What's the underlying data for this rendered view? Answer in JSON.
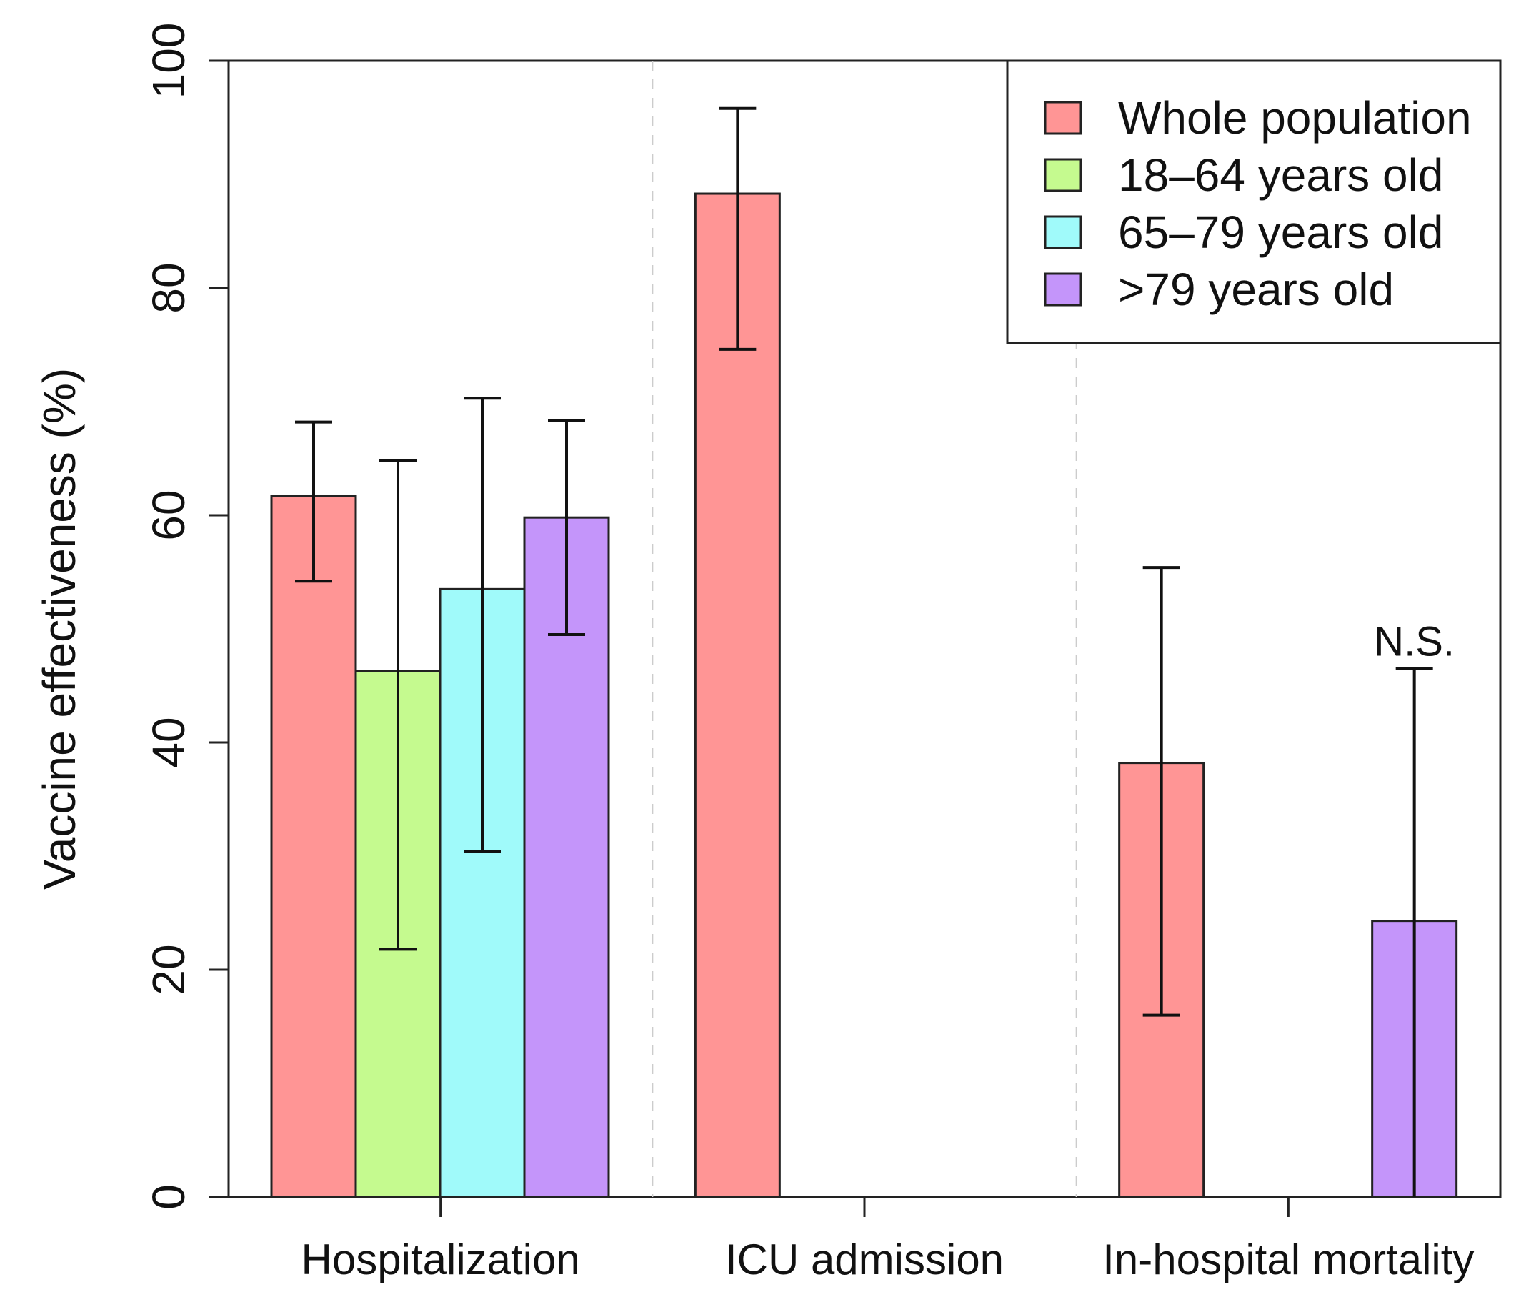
{
  "chart_data": {
    "type": "bar",
    "title": "",
    "xlabel": "",
    "ylabel": "Vaccine effectiveness (%)",
    "ylim": [
      0,
      100
    ],
    "yticks": [
      0,
      20,
      40,
      60,
      80,
      100
    ],
    "categories": [
      "Hospitalization",
      "ICU admission",
      "In-hospital mortality"
    ],
    "series": [
      {
        "name": "Whole population",
        "color": "#FF9595",
        "values": [
          61.7,
          88.3,
          38.2
        ],
        "ci_low": [
          54.2,
          74.6,
          16.0
        ],
        "ci_high": [
          68.2,
          95.8,
          55.4
        ]
      },
      {
        "name": "18–64 years old",
        "color": "#C5FA8F",
        "values": [
          46.3,
          null,
          null
        ],
        "ci_low": [
          21.8,
          null,
          null
        ],
        "ci_high": [
          64.8,
          null,
          null
        ]
      },
      {
        "name": "65–79 years old",
        "color": "#A0FAFA",
        "values": [
          53.5,
          null,
          null
        ],
        "ci_low": [
          30.4,
          null,
          null
        ],
        "ci_high": [
          70.3,
          null,
          null
        ]
      },
      {
        "name": ">79 years old",
        "color": "#C495FA",
        "values": [
          59.8,
          null,
          24.3
        ],
        "ci_low": [
          49.5,
          null,
          0
        ],
        "ci_high": [
          68.3,
          null,
          46.5
        ]
      }
    ],
    "annotations": [
      {
        "text": "N.S.",
        "category": "In-hospital mortality",
        "series": ">79 years old"
      }
    ],
    "legend_position": "top-right",
    "grid": false
  }
}
